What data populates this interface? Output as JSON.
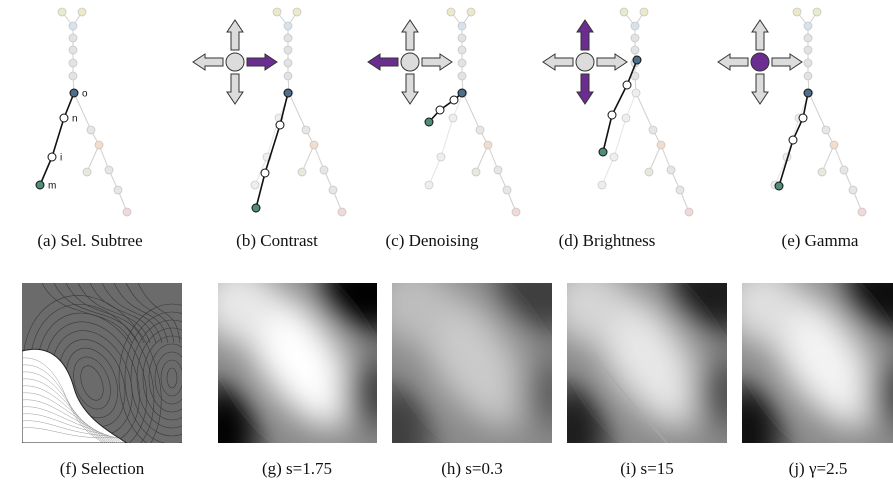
{
  "top_panels": [
    {
      "caption": "(a) Sel. Subtree",
      "node_labels": [
        "o",
        "n",
        "i",
        "m"
      ]
    },
    {
      "caption": "(b) Contrast"
    },
    {
      "caption": "(c) Denoising"
    },
    {
      "caption": "(d) Brightness"
    },
    {
      "caption": "(e) Gamma"
    }
  ],
  "bottom_panels": [
    {
      "caption": "(f) Selection"
    },
    {
      "caption": "(g) s=1.75"
    },
    {
      "caption": "(h) s=0.3"
    },
    {
      "caption": "(i) s=15"
    },
    {
      "caption": "(j) γ=2.5"
    }
  ]
}
